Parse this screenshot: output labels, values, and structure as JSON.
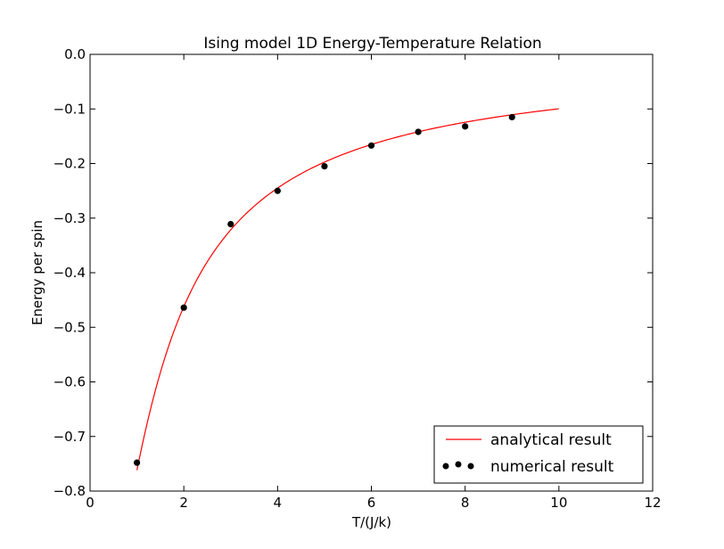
{
  "chart_data": {
    "type": "line",
    "title": "Ising model 1D Energy-Temperature Relation",
    "xlabel": "T/(J/k)",
    "ylabel": "Energy per spin",
    "xlim": [
      0,
      12
    ],
    "ylim": [
      -0.8,
      0.0
    ],
    "x_ticks": [
      0,
      2,
      4,
      6,
      8,
      10,
      12
    ],
    "x_tick_labels": [
      "0",
      "2",
      "4",
      "6",
      "8",
      "10",
      "12"
    ],
    "y_ticks": [
      0.0,
      -0.1,
      -0.2,
      -0.3,
      -0.4,
      -0.5,
      -0.6,
      -0.7,
      -0.8
    ],
    "y_tick_labels": [
      "0.0",
      "−0.1",
      "−0.2",
      "−0.3",
      "−0.4",
      "−0.5",
      "−0.6",
      "−0.7",
      "−0.8"
    ],
    "grid": false,
    "legend": "bottom-right",
    "series": [
      {
        "name": "analytical result",
        "kind": "line",
        "color": "#ff0000",
        "function": "-tanh(1/T)",
        "x_range": [
          1,
          10
        ]
      },
      {
        "name": "numerical result",
        "kind": "scatter",
        "color": "#000000",
        "x": [
          1,
          2,
          3,
          4,
          5,
          6,
          7,
          8,
          9
        ],
        "y": [
          -0.748,
          -0.464,
          -0.311,
          -0.25,
          -0.205,
          -0.167,
          -0.142,
          -0.132,
          -0.115
        ]
      }
    ]
  }
}
